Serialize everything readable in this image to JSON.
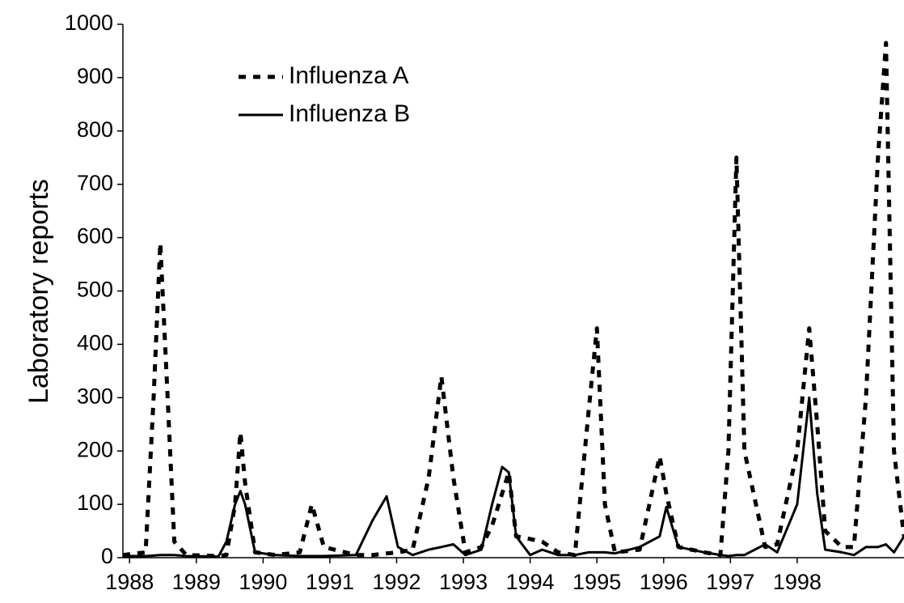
{
  "chart_data": {
    "type": "line",
    "y_label": "Laboratory reports",
    "x": [
      1987.9,
      1988.24,
      1988.36,
      1988.46,
      1988.57,
      1988.67,
      1988.85,
      1989.33,
      1989.45,
      1989.58,
      1989.66,
      1989.73,
      1989.88,
      1990.18,
      1990.55,
      1990.73,
      1990.91,
      1991.39,
      1991.64,
      1991.85,
      1992.02,
      1992.24,
      1992.48,
      1992.67,
      1992.85,
      1993.03,
      1993.27,
      1993.43,
      1993.58,
      1993.68,
      1993.79,
      1994.0,
      1994.18,
      1994.42,
      1994.67,
      1994.88,
      1995.0,
      1995.12,
      1995.27,
      1995.64,
      1995.94,
      1996.04,
      1996.22,
      1996.61,
      1996.85,
      1996.97,
      1997.09,
      1997.21,
      1997.52,
      1997.7,
      1998.0,
      1998.18,
      1998.3,
      1998.42,
      1998.67,
      1998.85,
      1999.03,
      1999.21,
      1999.33,
      1999.45,
      1999.6
    ],
    "series": [
      {
        "name": "Influenza A",
        "color": "#000000",
        "dash": true,
        "values": [
          5,
          10,
          300,
          590,
          300,
          30,
          5,
          3,
          5,
          100,
          235,
          140,
          10,
          5,
          10,
          100,
          20,
          5,
          5,
          8,
          10,
          15,
          150,
          340,
          150,
          10,
          20,
          60,
          120,
          160,
          40,
          35,
          30,
          10,
          5,
          280,
          430,
          100,
          10,
          15,
          190,
          120,
          20,
          10,
          5,
          200,
          750,
          200,
          20,
          25,
          200,
          430,
          250,
          50,
          20,
          20,
          300,
          750,
          965,
          200,
          40
        ]
      },
      {
        "name": "Influenza B",
        "color": "#000000",
        "dash": false,
        "values": [
          3,
          3,
          4,
          5,
          5,
          5,
          3,
          2,
          30,
          100,
          125,
          100,
          10,
          5,
          3,
          3,
          3,
          5,
          70,
          115,
          20,
          5,
          15,
          20,
          25,
          5,
          15,
          100,
          170,
          160,
          40,
          5,
          15,
          5,
          5,
          10,
          10,
          10,
          8,
          20,
          40,
          95,
          20,
          10,
          5,
          3,
          5,
          5,
          25,
          10,
          100,
          300,
          120,
          15,
          10,
          5,
          20,
          20,
          25,
          10,
          40
        ]
      }
    ],
    "xlim": [
      1987.9,
      1999.6
    ],
    "xticks": [
      1988,
      1989,
      1990,
      1991,
      1992,
      1993,
      1994,
      1995,
      1996,
      1997,
      1998
    ],
    "ylim": [
      0,
      1000
    ],
    "yticks": [
      0,
      100,
      200,
      300,
      400,
      500,
      600,
      700,
      800,
      900,
      1000
    ],
    "grid": false,
    "legend": "upper left"
  }
}
